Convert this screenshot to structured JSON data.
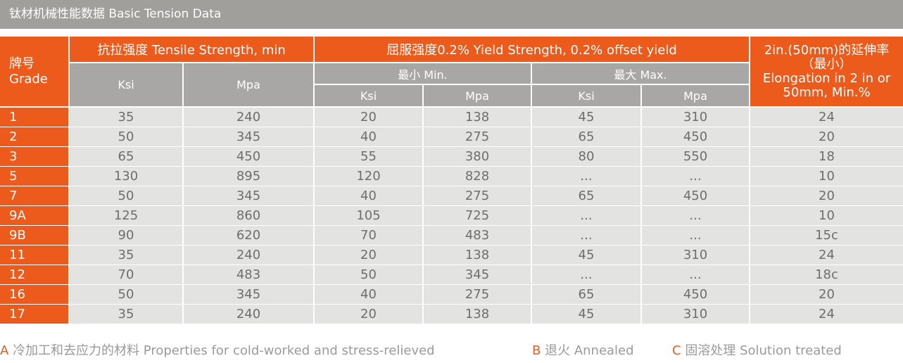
{
  "title": "钛材机械性能数据 Basic Tension Data",
  "header": {
    "grade": [
      "牌号",
      "Grade"
    ],
    "tensile": "抗拉强度 Tensile Strength, min",
    "yield": "屈服强度0.2% Yield Strength, 0.2% offset yield",
    "min": "最小 Min.",
    "max": "最大 Max.",
    "elongation": [
      "2in.(50mm)的延伸率",
      "（最小）",
      "Elongation in 2 in or",
      "50mm, Min.%"
    ],
    "ksi": "Ksi",
    "mpa": "Mpa"
  },
  "rows": [
    [
      "1",
      "35",
      "240",
      "20",
      "138",
      "45",
      "310",
      "24"
    ],
    [
      "2",
      "50",
      "345",
      "40",
      "275",
      "65",
      "450",
      "20"
    ],
    [
      "3",
      "65",
      "450",
      "55",
      "380",
      "80",
      "550",
      "18"
    ],
    [
      "5",
      "130",
      "895",
      "120",
      "828",
      "...",
      "...",
      "10"
    ],
    [
      "7",
      "50",
      "345",
      "40",
      "275",
      "65",
      "450",
      "20"
    ],
    [
      "9A",
      "125",
      "860",
      "105",
      "725",
      "...",
      "...",
      "10"
    ],
    [
      "9B",
      "90",
      "620",
      "70",
      "483",
      "...",
      "...",
      "15c"
    ],
    [
      "11",
      "35",
      "240",
      "20",
      "138",
      "45",
      "310",
      "24"
    ],
    [
      "12",
      "70",
      "483",
      "50",
      "345",
      "...",
      "...",
      "18c"
    ],
    [
      "16",
      "50",
      "345",
      "40",
      "275",
      "65",
      "450",
      "20"
    ],
    [
      "17",
      "35",
      "240",
      "20",
      "138",
      "45",
      "310",
      "24"
    ]
  ],
  "footnotes": [
    {
      "letter": "A",
      "text": "冷加工和去应力的材料 Properties for cold-worked and stress-relieved"
    },
    {
      "letter": "B",
      "text": "退火 Annealed"
    },
    {
      "letter": "C",
      "text": "固溶处理 Solution treated"
    }
  ],
  "colors": {
    "accent": "#ec5a1c",
    "title_bar": "#a19f9c",
    "subheader": "#a8a7a5",
    "body": "#e3e3e2"
  }
}
